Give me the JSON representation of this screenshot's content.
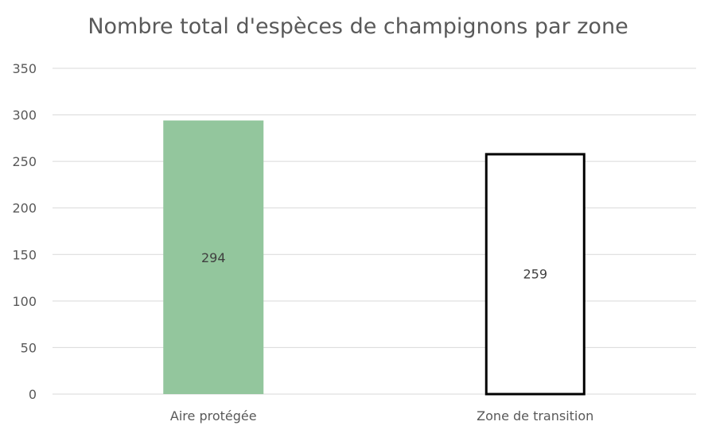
{
  "chart_data": {
    "type": "bar",
    "title": "Nombre total d'espèces de champignons par zone",
    "categories": [
      "Aire protégée",
      "Zone de transition"
    ],
    "values": [
      294,
      259
    ],
    "data_labels": [
      "294",
      "259"
    ],
    "ylim": [
      0,
      350
    ],
    "yticks": [
      0,
      50,
      100,
      150,
      200,
      250,
      300,
      350
    ],
    "ytick_labels": [
      "0",
      "50",
      "100",
      "150",
      "200",
      "250",
      "300",
      "350"
    ],
    "grid": true,
    "legend": "none",
    "colors": {
      "bar_fills": [
        "#93c69d",
        "#ffffff"
      ],
      "bar_strokes": [
        "none",
        "#000000"
      ],
      "gridline": "#d9d9d9",
      "text": "#595959"
    }
  }
}
